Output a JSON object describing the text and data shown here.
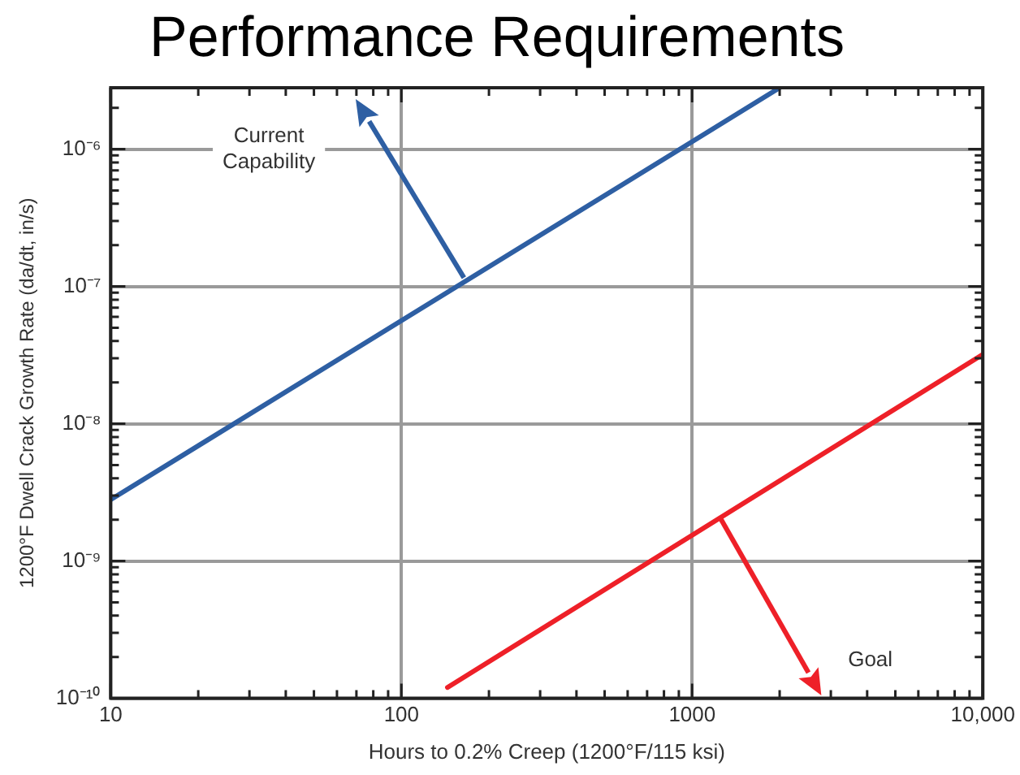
{
  "chart_data": {
    "type": "line",
    "title": "Performance Requirements",
    "xlabel": "Hours to 0.2% Creep (1200°F/115 ksi)",
    "ylabel": "1200°F Dwell Crack Growth Rate (da/dt, in/s)",
    "log": "xy",
    "grid": true,
    "legend": false,
    "marker": "none",
    "line_style": "solid",
    "xlim": [
      10,
      10000
    ],
    "xticks": [
      10,
      {
        "value": 20,
        "label": null
      },
      {
        "value": 30,
        "label": null
      },
      {
        "value": 40,
        "label": null
      },
      {
        "value": 50,
        "label": null
      },
      {
        "value": 60,
        "label": null
      },
      {
        "value": 70,
        "label": null
      },
      {
        "value": 80,
        "label": null
      },
      {
        "value": 90,
        "label": null
      },
      100,
      {
        "value": 200,
        "label": null
      },
      {
        "value": 300,
        "label": null
      },
      {
        "value": 400,
        "label": null
      },
      {
        "value": 500,
        "label": null
      },
      {
        "value": 600,
        "label": null
      },
      {
        "value": 700,
        "label": null
      },
      {
        "value": 800,
        "label": null
      },
      {
        "value": 900,
        "label": null
      },
      1000,
      {
        "value": 2000,
        "label": null
      },
      {
        "value": 3000,
        "label": null
      },
      {
        "value": 4000,
        "label": null
      },
      {
        "value": 5000,
        "label": null
      },
      {
        "value": 6000,
        "label": null
      },
      {
        "value": 7000,
        "label": null
      },
      {
        "value": 8000,
        "label": null
      },
      {
        "value": 9000,
        "label": null
      },
      {
        "value": 10000,
        "label": "10,000"
      }
    ],
    "ylim": [
      1e-10,
      2.8e-06
    ],
    "yticks": [
      {
        "value": 1e-10,
        "label": "10⁻¹⁰"
      },
      {
        "value": 2e-10,
        "label": null
      },
      {
        "value": 3e-10,
        "label": null
      },
      {
        "value": 4e-10,
        "label": null
      },
      {
        "value": 5e-10,
        "label": null
      },
      {
        "value": 6e-10,
        "label": null
      },
      {
        "value": 7e-10,
        "label": null
      },
      {
        "value": 8e-10,
        "label": null
      },
      {
        "value": 9e-10,
        "label": null
      },
      {
        "value": 1e-09,
        "label": "10⁻⁹"
      },
      {
        "value": 2e-09,
        "label": null
      },
      {
        "value": 3e-09,
        "label": null
      },
      {
        "value": 4e-09,
        "label": null
      },
      {
        "value": 5e-09,
        "label": null
      },
      {
        "value": 6e-09,
        "label": null
      },
      {
        "value": 7e-09,
        "label": null
      },
      {
        "value": 8e-09,
        "label": null
      },
      {
        "value": 9e-09,
        "label": null
      },
      {
        "value": 1e-08,
        "label": "10⁻⁸"
      },
      {
        "value": 2e-08,
        "label": null
      },
      {
        "value": 3e-08,
        "label": null
      },
      {
        "value": 4e-08,
        "label": null
      },
      {
        "value": 5e-08,
        "label": null
      },
      {
        "value": 6e-08,
        "label": null
      },
      {
        "value": 7e-08,
        "label": null
      },
      {
        "value": 8e-08,
        "label": null
      },
      {
        "value": 9e-08,
        "label": null
      },
      {
        "value": 1e-07,
        "label": "10⁻⁷"
      },
      {
        "value": 2e-07,
        "label": null
      },
      {
        "value": 3e-07,
        "label": null
      },
      {
        "value": 4e-07,
        "label": null
      },
      {
        "value": 5e-07,
        "label": null
      },
      {
        "value": 6e-07,
        "label": null
      },
      {
        "value": 7e-07,
        "label": null
      },
      {
        "value": 8e-07,
        "label": null
      },
      {
        "value": 9e-07,
        "label": null
      },
      {
        "value": 1e-06,
        "label": "10⁻⁶"
      },
      {
        "value": 2e-06,
        "label": null
      }
    ],
    "series": [
      {
        "color": "#2e5fa3",
        "x": [
          10,
          2000
        ],
        "values": [
          2.8e-09,
          2.8e-06
        ]
      },
      {
        "color": "#ee2028",
        "x": [
          144,
          10000
        ],
        "values": [
          1.2e-10,
          3.2e-08
        ]
      }
    ],
    "annotations": [
      "Current Capability",
      "Goal"
    ]
  }
}
